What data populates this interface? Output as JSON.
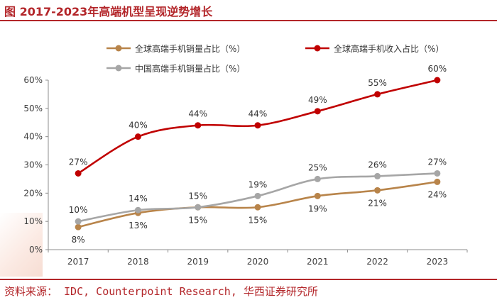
{
  "title": "图 2017-2023年高端机型呈现逆势增长",
  "source": "资料来源： IDC, Counterpoint Research, 华西证券研究所",
  "chart_data": {
    "type": "line",
    "categories": [
      "2017",
      "2018",
      "2019",
      "2020",
      "2021",
      "2022",
      "2023"
    ],
    "ylim": [
      0,
      60
    ],
    "yticks": [
      0,
      10,
      20,
      30,
      40,
      50,
      60
    ],
    "ytick_labels": [
      "0%",
      "10%",
      "20%",
      "30%",
      "40%",
      "50%",
      "60%"
    ],
    "grid": false,
    "series": [
      {
        "name": "全球高端手机销量占比（%）",
        "color": "#b8844a",
        "values": [
          8,
          13,
          15,
          15,
          19,
          21,
          24
        ],
        "labels": [
          "8%",
          "13%",
          "15%",
          "15%",
          "19%",
          "21%",
          "24%"
        ]
      },
      {
        "name": "全球高端手机收入占比（%）",
        "color": "#c00000",
        "values": [
          27,
          40,
          44,
          44,
          49,
          55,
          60
        ],
        "labels": [
          "27%",
          "40%",
          "44%",
          "44%",
          "49%",
          "55%",
          "60%"
        ]
      },
      {
        "name": "中国高端手机销量占比（%）",
        "color": "#a6a6a6",
        "values": [
          10,
          14,
          15,
          19,
          25,
          26,
          27
        ],
        "labels": [
          "10%",
          "14%",
          "15%",
          "19%",
          "25%",
          "26%",
          "27%"
        ]
      }
    ]
  }
}
